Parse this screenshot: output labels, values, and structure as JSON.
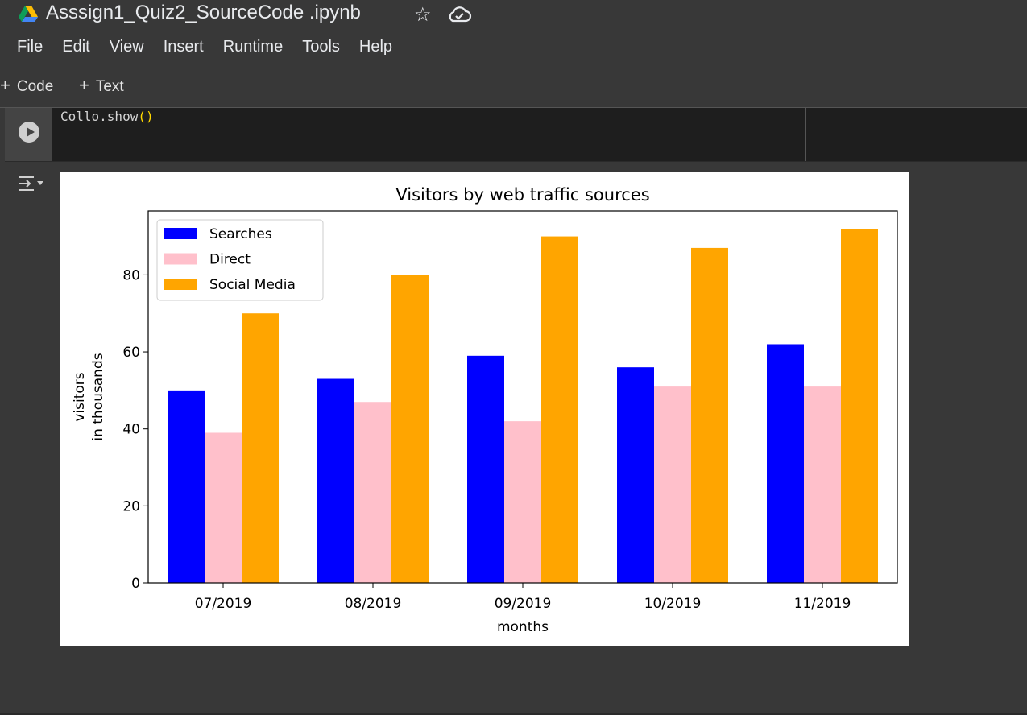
{
  "notebook": {
    "title": "Asssign1_Quiz2_SourceCode .ipynb"
  },
  "menu": [
    "File",
    "Edit",
    "View",
    "Insert",
    "Runtime",
    "Tools",
    "Help"
  ],
  "toolbar": {
    "add_code": "Code",
    "add_text": "Text"
  },
  "icons": {
    "drive": "google-drive-logo",
    "star": "star-icon",
    "cloud": "cloud-saved-icon",
    "run": "play-circle-icon",
    "output_toggle": "output-toggle-icon"
  },
  "cell": {
    "code_text": "Collo.show",
    "code_parens": "()"
  },
  "colors": {
    "searches": "#0000ff",
    "direct": "#ffc0cb",
    "social": "#ffa500"
  },
  "chart_data": {
    "type": "bar",
    "title": "Visitors by web traffic sources",
    "xlabel": "months",
    "ylabel": [
      "visitors",
      "in thousands"
    ],
    "categories": [
      "07/2019",
      "08/2019",
      "09/2019",
      "10/2019",
      "11/2019"
    ],
    "series": [
      {
        "name": "Searches",
        "color": "#0000ff",
        "values": [
          50,
          53,
          59,
          56,
          62
        ]
      },
      {
        "name": "Direct",
        "color": "#ffc0cb",
        "values": [
          39,
          47,
          42,
          51,
          51
        ]
      },
      {
        "name": "Social Media",
        "color": "#ffa500",
        "values": [
          70,
          80,
          90,
          87,
          92
        ]
      }
    ],
    "ylim": [
      0,
      96.6
    ],
    "yticks": [
      0,
      20,
      40,
      60,
      80
    ],
    "legend": "upper-left",
    "grid": false
  }
}
